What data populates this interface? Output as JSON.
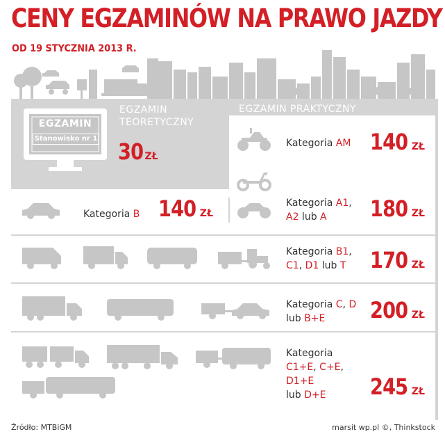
{
  "title": "CENY EGZAMINÓW NA PRAWO JAZDY",
  "subtitle": "OD 19 STYCZNIA 2013 R.",
  "theory": {
    "header_line1": "EGZAMIN",
    "header_line2": "TEORETYCZNY",
    "screen_label": "EGZAMIN",
    "screen_sub": "Stanowisko nr 1",
    "price": "30",
    "unit": "ZŁ"
  },
  "practical_header": "EGZAMIN PRAKTYCZNY",
  "rows": {
    "am": {
      "prefix": "Kategoria ",
      "code": "AM",
      "price": "140",
      "unit": "ZŁ"
    },
    "b": {
      "prefix": "Kategoria ",
      "code": "B",
      "price": "140",
      "unit": "ZŁ"
    },
    "a": {
      "line1_prefix": "Kategoria ",
      "line1_code": "A1",
      "line1_suffix": ",",
      "line2_code": "A2",
      "line2_suffix": " lub ",
      "line2_code2": "A",
      "price": "180",
      "unit": "ZŁ"
    },
    "b1": {
      "line1_prefix": "Kategoria ",
      "line1_code": "B1",
      "line1_suffix": ",",
      "line2_code": "C1",
      "line2_mid": ", ",
      "line2_code2": "D1",
      "line2_mid2": " lub ",
      "line2_code3": "T",
      "price": "170",
      "unit": "ZŁ"
    },
    "c": {
      "line1_prefix": "Kategoria ",
      "line1_code": "C",
      "line1_mid": ", ",
      "line1_code2": "D",
      "line2_prefix": "lub ",
      "line2_code": "B+E",
      "price": "200",
      "unit": "ZŁ"
    },
    "ce": {
      "line1": "Kategoria",
      "line2_code": "C1+E",
      "line2_mid": ", ",
      "line2_code2": "C+E",
      "line2_suffix": ",",
      "line3_code": "D1+E",
      "line4_prefix": "lub ",
      "line4_code": "D+E",
      "price": "245",
      "unit": "ZŁ"
    }
  },
  "footer": {
    "source": "Źródło: MTBiGM",
    "credit": "marsit wp.pl ©, Thinkstock"
  },
  "colors": {
    "accent": "#d31f26",
    "panel": "#d4d4d4",
    "icons": "#c6c6c6"
  }
}
